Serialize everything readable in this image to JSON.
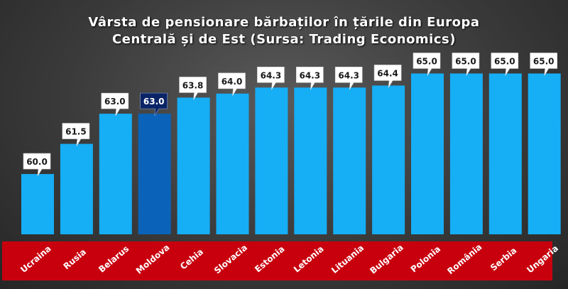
{
  "title": {
    "line1": "Vârsta de pensionare bărbaților în țările din Europa",
    "line2": "Centrală și de Est (Sursa: Trading Economics)"
  },
  "colors": {
    "bar": "#16aef5",
    "bar_highlight": "#0a63b8",
    "label_box": "#ffffff",
    "label_box_highlight": "#0b2466",
    "label_bg": "#c8000e"
  },
  "chart_data": {
    "type": "bar",
    "title": "Vârsta de pensionare bărbaților în țările din Europa Centrală și de Est (Sursa: Trading Economics)",
    "categories": [
      "Ucraina",
      "Rusia",
      "Belarus",
      "Moldova",
      "Cehia",
      "Slovacia",
      "Estonia",
      "Letonia",
      "Lituania",
      "Bulgaria",
      "Polonia",
      "România",
      "Serbia",
      "Ungaria"
    ],
    "values": [
      60.0,
      61.5,
      63.0,
      63.0,
      63.8,
      64.0,
      64.3,
      64.3,
      64.3,
      64.4,
      65.0,
      65.0,
      65.0,
      65.0
    ],
    "value_labels": [
      "60.0",
      "61.5",
      "63.0",
      "63.0",
      "63.8",
      "64.0",
      "64.3",
      "64.3",
      "64.3",
      "64.4",
      "65.0",
      "65.0",
      "65.0",
      "65.0"
    ],
    "highlighted_category": "Moldova",
    "ylim": [
      57,
      65.3
    ],
    "grid": false,
    "legend": "none"
  }
}
